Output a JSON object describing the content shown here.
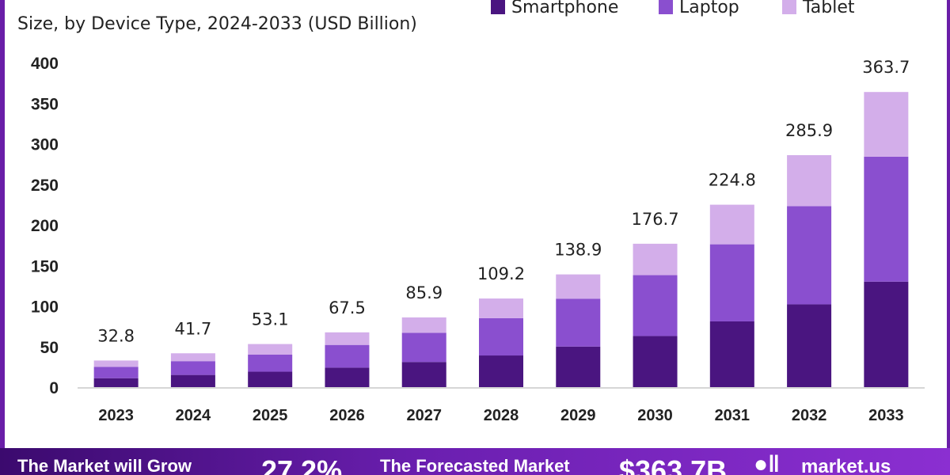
{
  "subtitle": "Size, by Device Type, 2024-2033 (USD Billion)",
  "legend": [
    {
      "label": "Smartphone",
      "color": "#4a1580"
    },
    {
      "label": "Laptop",
      "color": "#8a4fcf"
    },
    {
      "label": "Tablet",
      "color": "#d3aeea"
    }
  ],
  "chart_data": {
    "type": "bar",
    "stacked": true,
    "categories": [
      "2023",
      "2024",
      "2025",
      "2026",
      "2027",
      "2028",
      "2029",
      "2030",
      "2031",
      "2032",
      "2033"
    ],
    "series": [
      {
        "name": "Smartphone",
        "color": "#4a1580",
        "values": [
          11,
          15,
          19,
          24,
          31,
          39,
          50,
          63,
          81,
          102,
          130
        ]
      },
      {
        "name": "Laptop",
        "color": "#8a4fcf",
        "values": [
          14,
          17,
          21,
          28,
          36,
          46,
          59,
          75,
          95,
          121,
          154
        ]
      },
      {
        "name": "Tablet",
        "color": "#d3aeea",
        "values": [
          7.8,
          9.7,
          13.1,
          15.5,
          18.9,
          24.2,
          29.9,
          38.7,
          48.8,
          62.9,
          79.7
        ]
      }
    ],
    "totals": [
      "32.8",
      "41.7",
      "53.1",
      "67.5",
      "85.9",
      "109.2",
      "138.9",
      "176.7",
      "224.8",
      "285.9",
      "363.7"
    ],
    "yticks": [
      "0",
      "50",
      "100",
      "150",
      "200",
      "250",
      "300",
      "350",
      "400"
    ],
    "ylim": [
      0,
      400
    ],
    "grid": false,
    "legend_position": "top-right"
  },
  "footer": {
    "text1": "The Market will Grow",
    "text2": "27.2%",
    "text3": "The Forecasted Market",
    "text4": "$363.7B",
    "logo_icon": "market-us-logo-icon",
    "text5": "market.us"
  }
}
